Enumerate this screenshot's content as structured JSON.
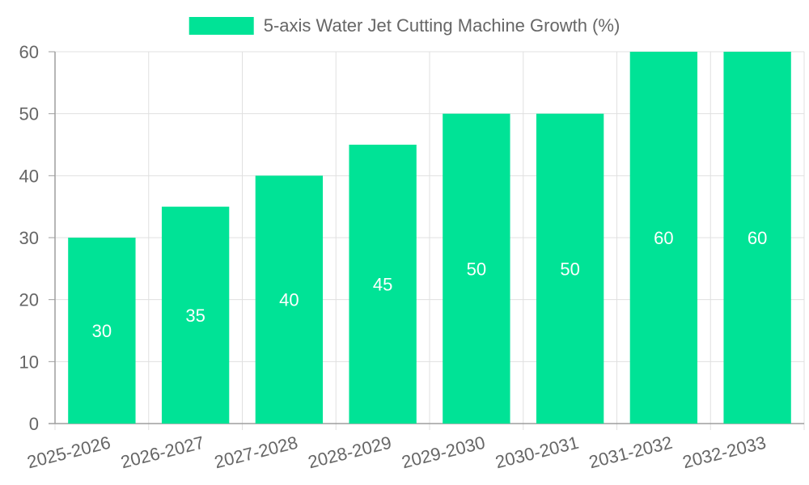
{
  "chart_data": {
    "type": "bar",
    "categories": [
      "2025-2026",
      "2026-2027",
      "2027-2028",
      "2028-2029",
      "2029-2030",
      "2030-2031",
      "2031-2032",
      "2032-2033"
    ],
    "series": [
      {
        "name": "5-axis Water Jet Cutting Machine Growth (%)",
        "values": [
          30,
          35,
          40,
          45,
          50,
          50,
          60,
          60
        ],
        "color": "#00e396"
      }
    ],
    "ylim": [
      0,
      60
    ],
    "yticks": [
      0,
      10,
      20,
      30,
      40,
      50,
      60
    ],
    "xlabel": "",
    "ylabel": "",
    "grid": true,
    "legend": "top-center",
    "data_labels": true
  }
}
